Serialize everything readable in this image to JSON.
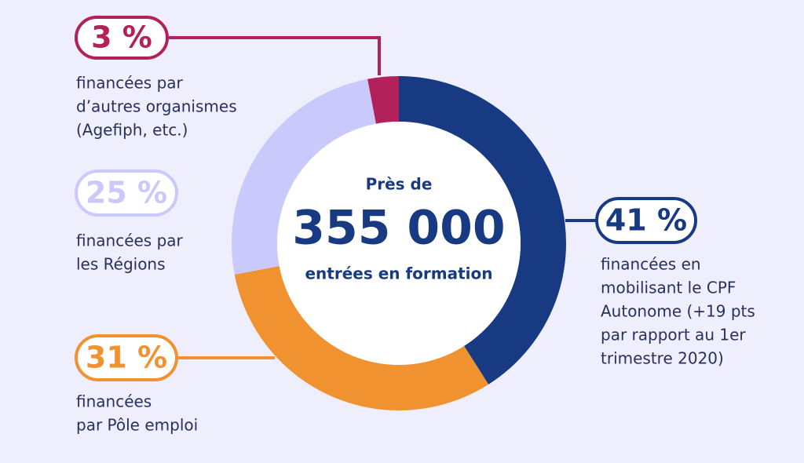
{
  "chart_data": {
    "type": "donut",
    "center_text": [
      "Près de",
      "355 000",
      "entrées en formation"
    ],
    "values": [
      41,
      31,
      25,
      3
    ],
    "value_labels": [
      "41 %",
      "31 %",
      "25 %",
      "3 %"
    ],
    "colors": [
      "#173a82",
      "#f0922f",
      "#c9c9fb",
      "#b3215a"
    ],
    "categories": [
      [
        "financées en",
        "mobilisant le CPF",
        "Autonome (+19 pts",
        "par rapport au 1er",
        "trimestre 2020)"
      ],
      [
        "financées",
        "par Pôle emploi"
      ],
      [
        "financées par",
        "les Régions"
      ],
      [
        "financées par",
        "d’autres organismes",
        "(Agefiph, etc.)"
      ]
    ]
  }
}
